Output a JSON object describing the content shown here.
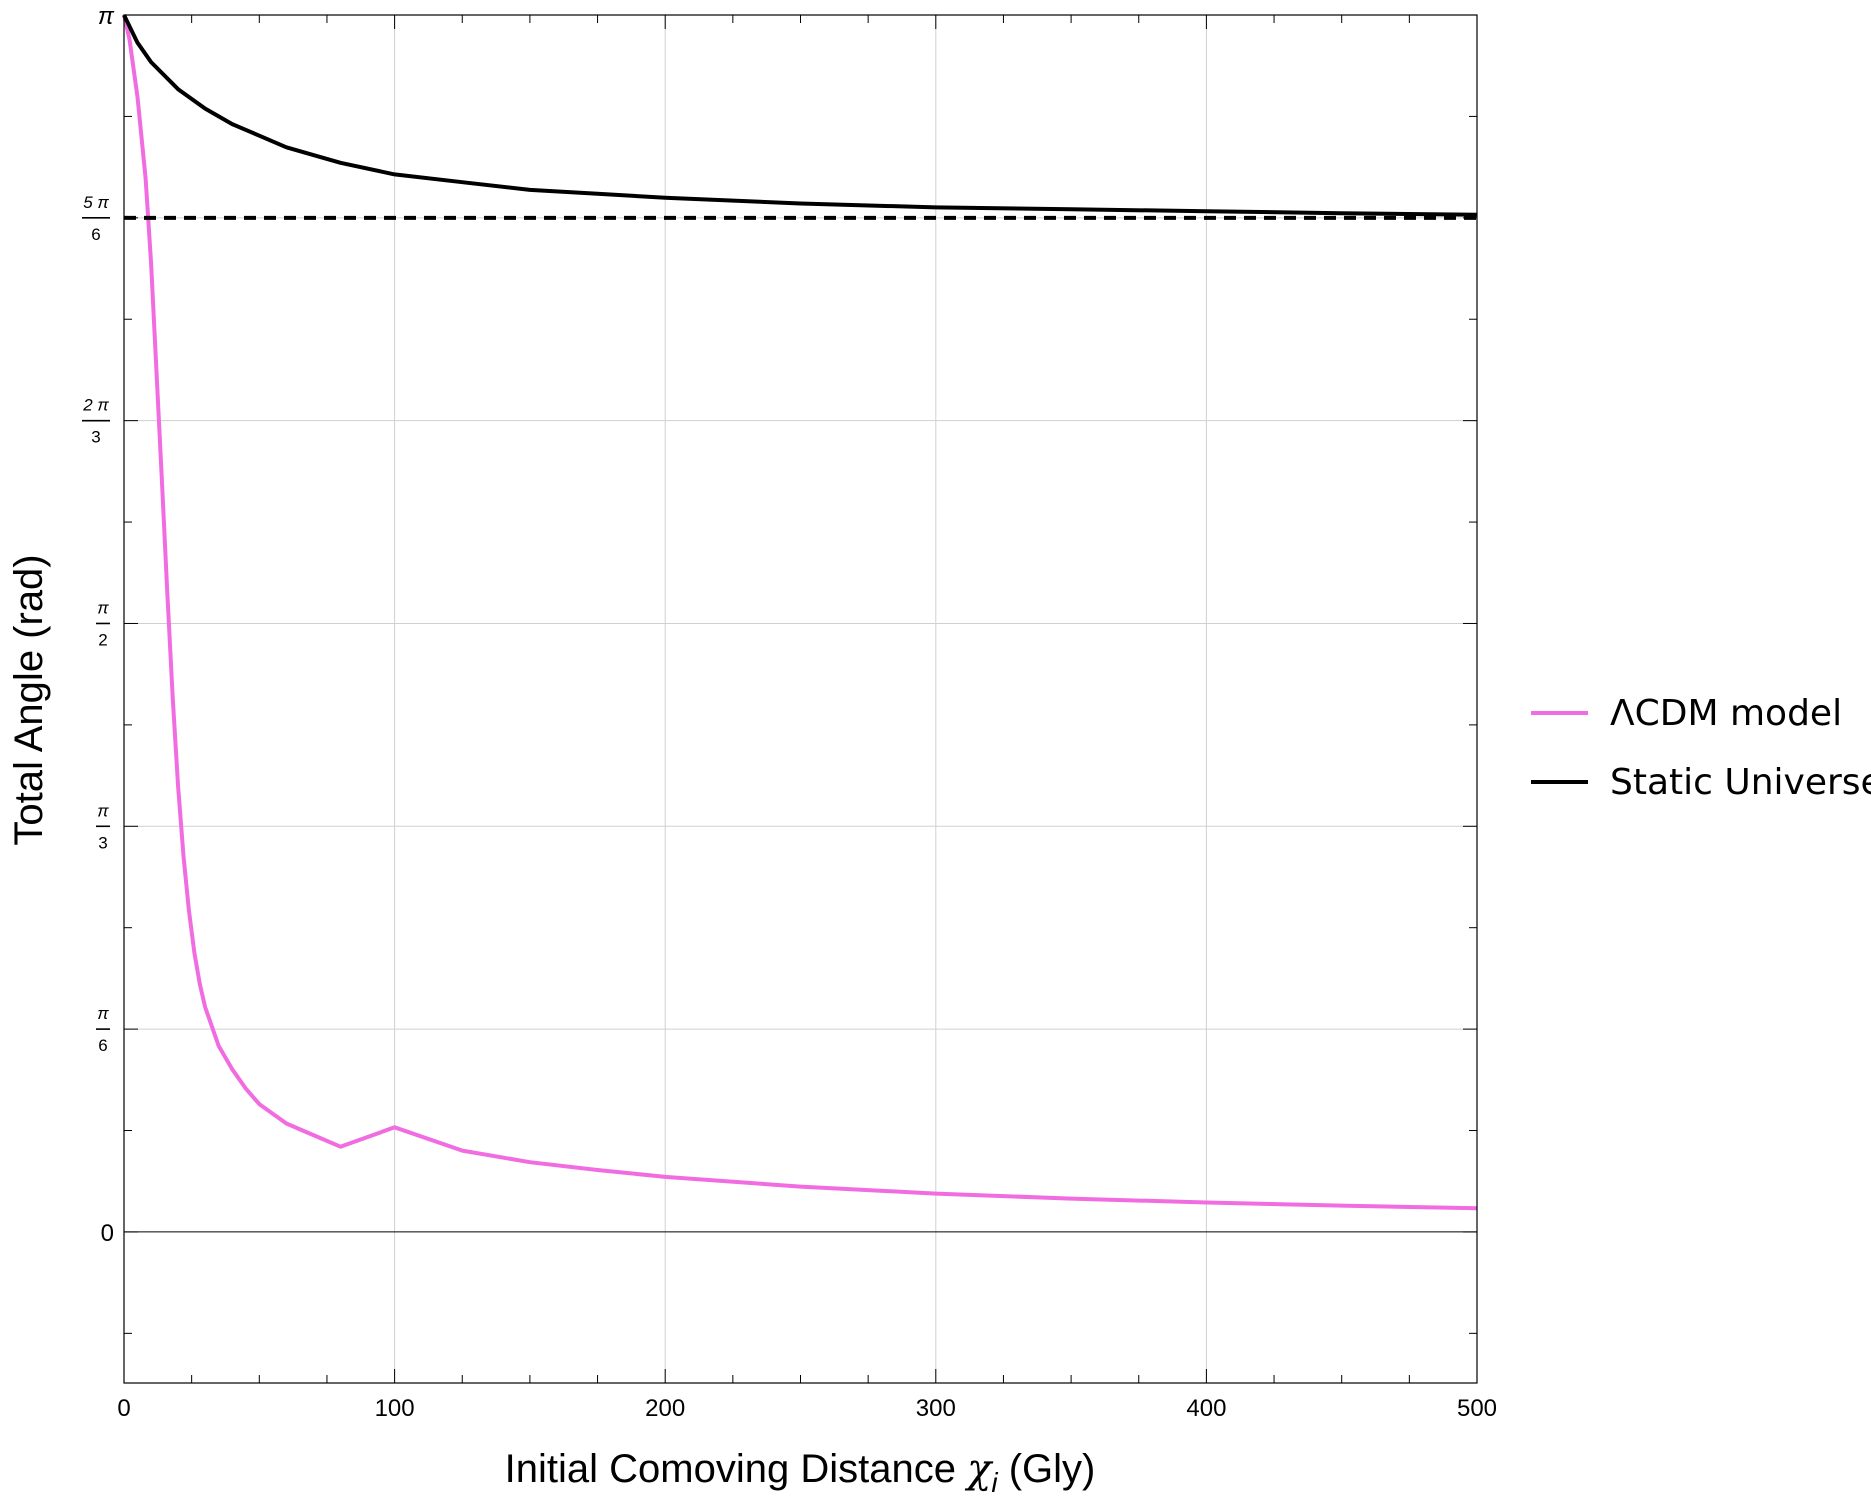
{
  "chart_data": {
    "type": "line",
    "xlabel": "Initial Comoving Distance",
    "xlabel_symbol": "χ",
    "xlabel_subscript": "i",
    "xlabel_unit": "(Gly)",
    "ylabel": "Total Angle (rad)",
    "xlim": [
      0,
      500
    ],
    "ylim": [
      -0.39,
      3.1416
    ],
    "grid": true,
    "legend_position": "right",
    "x_ticks": [
      {
        "value": 0,
        "label": "0"
      },
      {
        "value": 100,
        "label": "100"
      },
      {
        "value": 200,
        "label": "200"
      },
      {
        "value": 300,
        "label": "300"
      },
      {
        "value": 400,
        "label": "400"
      },
      {
        "value": 500,
        "label": "500"
      }
    ],
    "y_ticks": [
      {
        "value": 0,
        "num": "0",
        "den": ""
      },
      {
        "value": 0.5236,
        "num": "π",
        "den": "6"
      },
      {
        "value": 1.0472,
        "num": "π",
        "den": "3"
      },
      {
        "value": 1.5708,
        "num": "π",
        "den": "2"
      },
      {
        "value": 2.0944,
        "num": "2 π",
        "den": "3"
      },
      {
        "value": 2.618,
        "num": "5 π",
        "den": "6"
      },
      {
        "value": 3.1416,
        "num": "π",
        "den": ""
      }
    ],
    "reference_line": {
      "y": 2.618,
      "style": "dashed",
      "color": "#000000"
    },
    "series": [
      {
        "name": "ΛCDM model",
        "color": "#f06ce0",
        "x": [
          0,
          2,
          5,
          8,
          10,
          12,
          14,
          16,
          18,
          20,
          22,
          24,
          26,
          28,
          30,
          35,
          40,
          45,
          50,
          60,
          70,
          80,
          100,
          125,
          150,
          175,
          200,
          250,
          300,
          350,
          400,
          450,
          500
        ],
        "y": [
          3.1416,
          3.08,
          2.93,
          2.72,
          2.5,
          2.22,
          1.94,
          1.65,
          1.38,
          1.15,
          0.97,
          0.83,
          0.72,
          0.64,
          0.58,
          0.48,
          0.42,
          0.37,
          0.33,
          0.28,
          0.25,
          0.22,
          0.27,
          0.21,
          0.18,
          0.16,
          0.142,
          0.117,
          0.099,
          0.086,
          0.076,
          0.068,
          0.061
        ]
      },
      {
        "name": "Static Universe",
        "color": "#000000",
        "x": [
          0,
          5,
          10,
          20,
          30,
          40,
          50,
          60,
          70,
          80,
          100,
          125,
          150,
          175,
          200,
          250,
          300,
          350,
          400,
          450,
          500
        ],
        "y": [
          3.1416,
          3.07,
          3.02,
          2.95,
          2.9,
          2.86,
          2.83,
          2.8,
          2.78,
          2.76,
          2.73,
          2.71,
          2.69,
          2.68,
          2.67,
          2.655,
          2.645,
          2.64,
          2.635,
          2.63,
          2.626
        ]
      }
    ]
  }
}
